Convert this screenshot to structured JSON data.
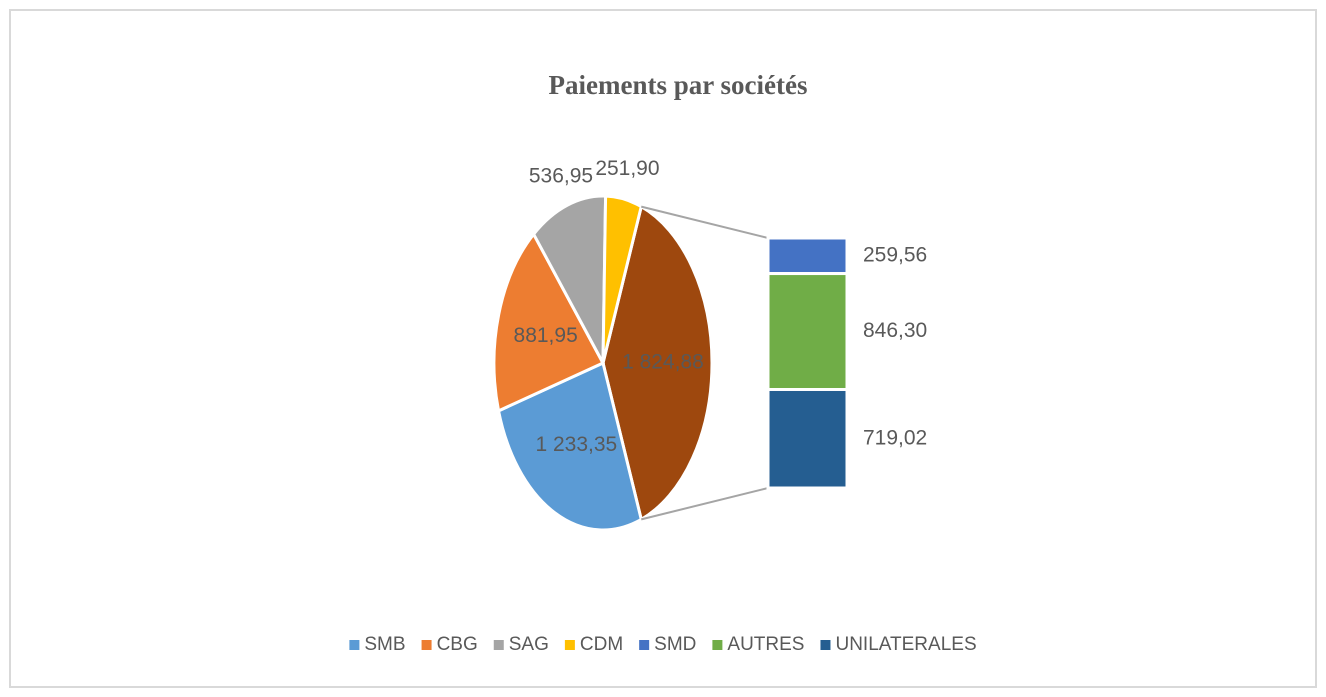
{
  "chart_data": {
    "type": "bar-of-pie",
    "title": "Paiements par sociétés",
    "pie": {
      "categories": [
        "SMB",
        "CBG",
        "SAG",
        "CDM"
      ],
      "values": [
        1233.35,
        881.95,
        536.95,
        251.9
      ],
      "value_labels": [
        "1 233,35",
        "881,95",
        "536,95",
        "251,90"
      ],
      "colors": [
        "#5b9bd5",
        "#ed7d31",
        "#a5a5a5",
        "#ffc000"
      ]
    },
    "other": {
      "value": 1824.88,
      "label": "1 824,88",
      "color": "#9e480e"
    },
    "bar": {
      "categories": [
        "SMD",
        "AUTRES",
        "UNILATERALES"
      ],
      "values": [
        259.56,
        846.3,
        719.02
      ],
      "value_labels": [
        "259,56",
        "846,30",
        "719,02"
      ],
      "colors": [
        "#4472c4",
        "#70ad47",
        "#255e91"
      ]
    },
    "legend": "bottom"
  }
}
